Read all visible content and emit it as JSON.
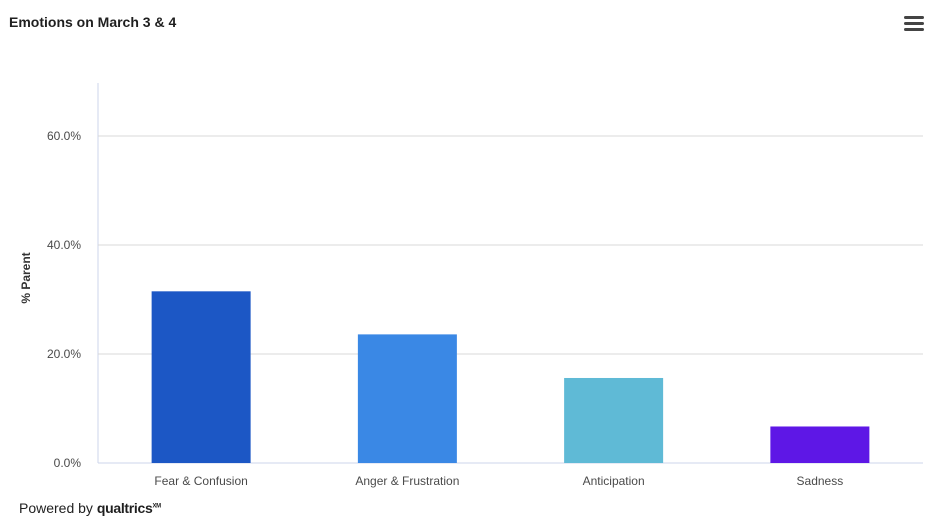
{
  "header": {
    "title": "Emotions on March 3 & 4",
    "menu_icon": "hamburger-menu-icon"
  },
  "footer": {
    "powered_by": "Powered by",
    "brand": "qualtrics",
    "brand_mark": "XM"
  },
  "chart_data": {
    "type": "bar",
    "title": "Emotions on March 3 & 4",
    "xlabel": "",
    "ylabel": "% Parent",
    "categories": [
      "Fear & Confusion",
      "Anger & Frustration",
      "Anticipation",
      "Sadness"
    ],
    "values": [
      31.5,
      23.6,
      15.6,
      6.7
    ],
    "colors": [
      "#1c57c5",
      "#3a88e5",
      "#5fbad6",
      "#5e17e6"
    ],
    "ylim": [
      0,
      70
    ],
    "yticks": [
      0,
      20,
      40,
      60
    ],
    "ytick_labels": [
      "0.0%",
      "20.0%",
      "40.0%",
      "60.0%"
    ],
    "grid": true,
    "legend": "none"
  }
}
